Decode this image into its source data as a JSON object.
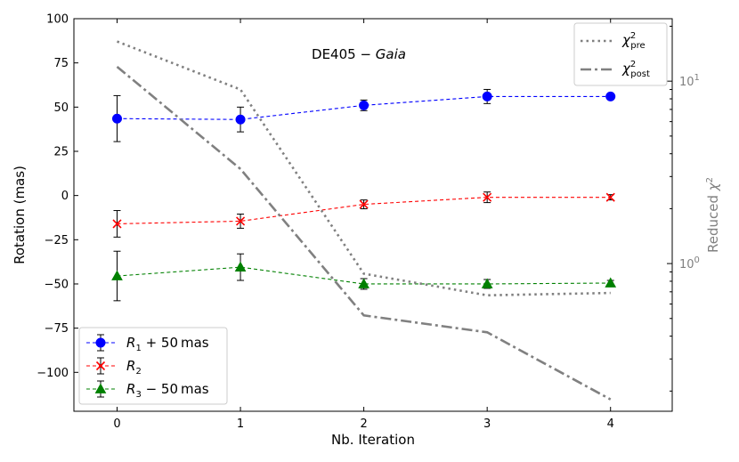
{
  "chart_data": {
    "type": "line",
    "title": "DE405 − Gaia",
    "title_parts": {
      "prefix": "DE405 − ",
      "italic": "Gaia"
    },
    "xlabel": "Nb. Iteration",
    "ylabel": "Rotation (mas)",
    "y2label": "Reduced χ²",
    "y2label_parts": {
      "prefix": "Reduced ",
      "symbol": "χ",
      "sup": "2"
    },
    "xlim": [
      -0.35,
      4.5
    ],
    "ylim": [
      -122,
      100
    ],
    "y2lim": [
      0.155,
      22
    ],
    "y2scale": "log",
    "x_ticks": [
      0,
      1,
      2,
      3,
      4
    ],
    "x_tick_labels": [
      "0",
      "1",
      "2",
      "3",
      "4"
    ],
    "y_ticks": [
      100,
      75,
      50,
      25,
      0,
      -25,
      -50,
      -75,
      -100
    ],
    "y_tick_labels": [
      "100",
      "75",
      "50",
      "25",
      "0",
      "−25",
      "−50",
      "−75",
      "−100"
    ],
    "y2_major_ticks": [
      1,
      10
    ],
    "y2_tick_labels": [
      "10",
      "10"
    ],
    "y2_tick_exponents": [
      "0",
      "1"
    ],
    "y2_minor_ticks": [
      0.2,
      0.3,
      0.4,
      0.5,
      0.6,
      0.7,
      0.8,
      0.9,
      2,
      3,
      4,
      5,
      6,
      7,
      8,
      9,
      20
    ],
    "series": [
      {
        "name": "R1 + 50 mas",
        "label_parts": {
          "symbol": "R",
          "sub": "1",
          "suffix": " + 50 mas"
        },
        "color": "#0000ff",
        "marker": "circle",
        "axis": "left",
        "x": [
          0,
          1,
          2,
          3,
          4
        ],
        "values": [
          43.5,
          43,
          51,
          56,
          56
        ],
        "errors": [
          13,
          7,
          3,
          4,
          1.5
        ]
      },
      {
        "name": "R2",
        "label_parts": {
          "symbol": "R",
          "sub": "2",
          "suffix": ""
        },
        "color": "#ff0000",
        "marker": "x",
        "axis": "left",
        "x": [
          0,
          1,
          2,
          3,
          4
        ],
        "values": [
          -16,
          -14.5,
          -5,
          -1,
          -1
        ],
        "errors": [
          7.5,
          4,
          2.5,
          3,
          1.5
        ]
      },
      {
        "name": "R3 − 50 mas",
        "label_parts": {
          "symbol": "R",
          "sub": "3",
          "suffix": " − 50 mas"
        },
        "color": "#008000",
        "marker": "triangle",
        "axis": "left",
        "x": [
          0,
          1,
          2,
          3,
          4
        ],
        "values": [
          -45.5,
          -40.5,
          -50,
          -50,
          -49.5
        ],
        "errors": [
          14,
          7.5,
          3,
          2.5,
          1.5
        ]
      },
      {
        "name": "χ² pre",
        "label_parts": {
          "symbol": "χ",
          "sup": "2",
          "sub": "pre"
        },
        "color": "#808080",
        "style": "dotted",
        "axis": "right",
        "x": [
          0,
          1,
          2,
          3,
          4
        ],
        "values": [
          16.5,
          9.0,
          0.88,
          0.67,
          0.69
        ]
      },
      {
        "name": "χ² post",
        "label_parts": {
          "symbol": "χ",
          "sup": "2",
          "sub": "post"
        },
        "color": "#808080",
        "style": "dashdot",
        "axis": "right",
        "x": [
          0,
          1,
          2,
          3,
          4
        ],
        "values": [
          12.0,
          3.3,
          0.52,
          0.42,
          0.18
        ]
      }
    ],
    "legends": [
      {
        "location": "lower-left",
        "entries": [
          0,
          1,
          2
        ]
      },
      {
        "location": "upper-right",
        "entries": [
          3,
          4
        ]
      }
    ]
  }
}
